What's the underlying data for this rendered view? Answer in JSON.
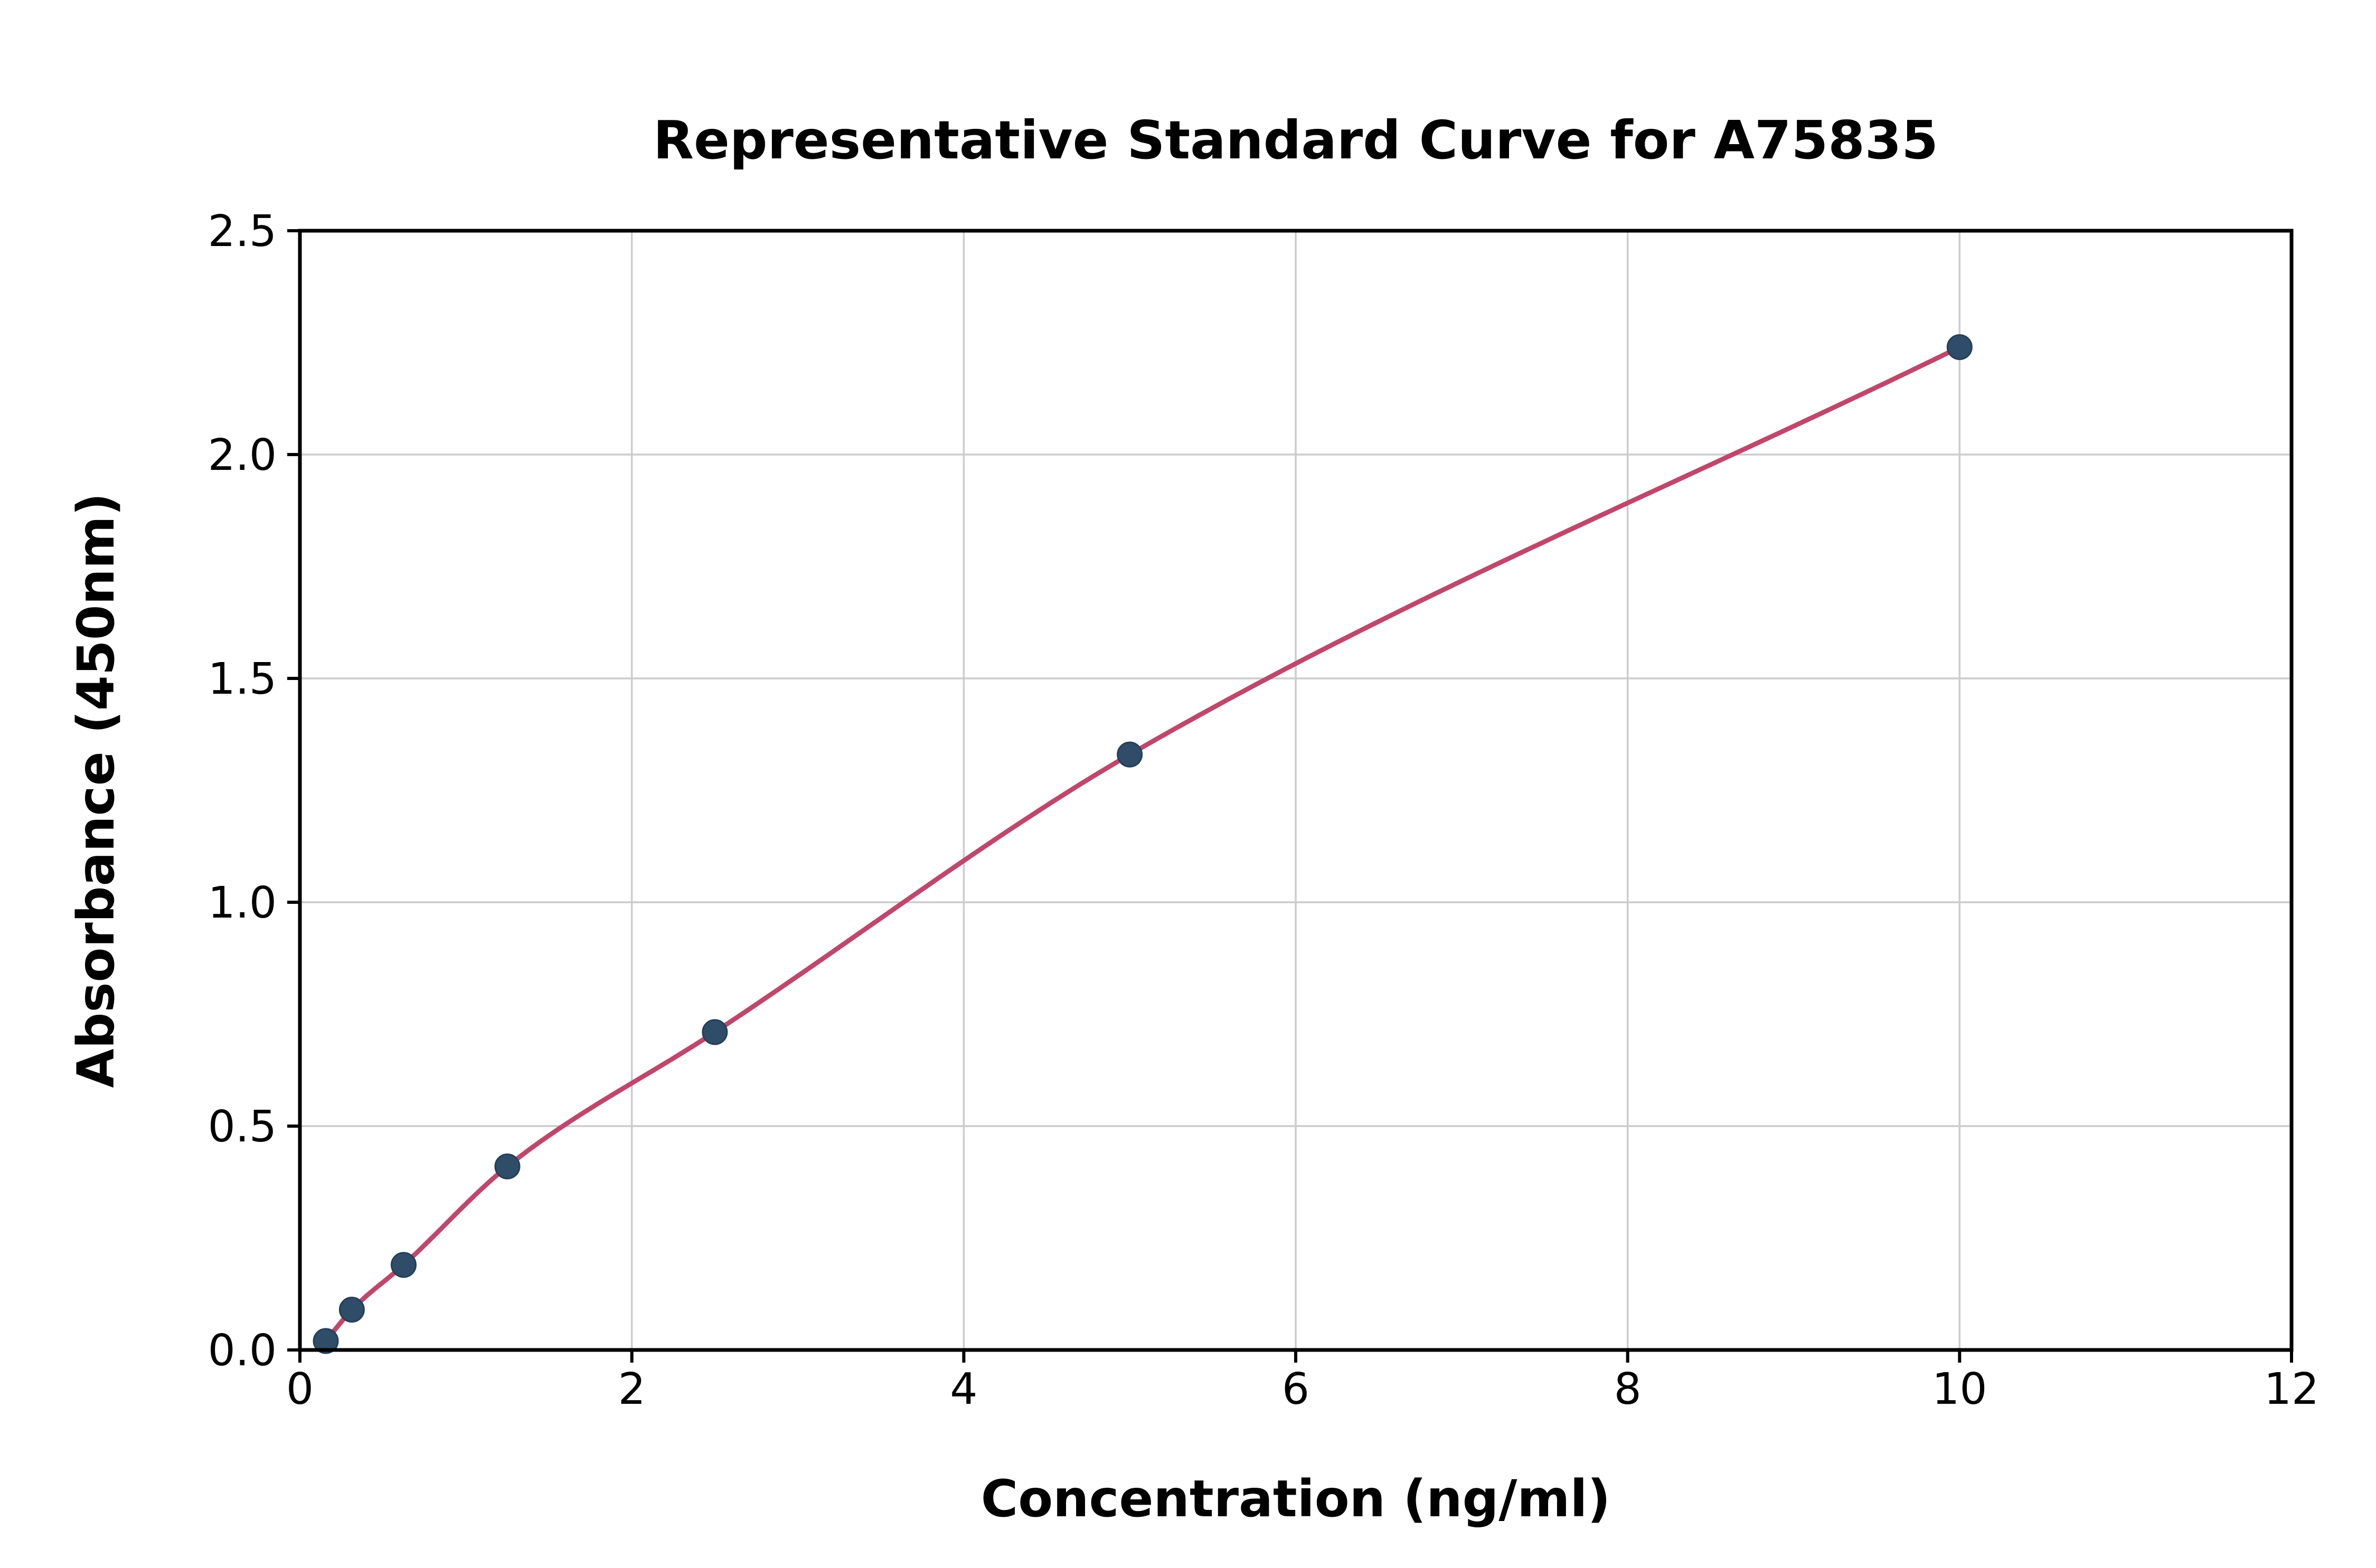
{
  "chart_data": {
    "type": "scatter",
    "title": "Representative Standard Curve for A75835",
    "xlabel": "Concentration (ng/ml)",
    "ylabel": "Absorbance (450nm)",
    "xlim": [
      0,
      12
    ],
    "ylim": [
      0,
      2.5
    ],
    "xticks": [
      0,
      2,
      4,
      6,
      8,
      10,
      12
    ],
    "xtick_labels": [
      "0",
      "2",
      "4",
      "6",
      "8",
      "10",
      "12"
    ],
    "yticks": [
      0,
      0.5,
      1.0,
      1.5,
      2.0,
      2.5
    ],
    "ytick_labels": [
      "0.0",
      "0.5",
      "1.0",
      "1.5",
      "2.0",
      "2.5"
    ],
    "grid": true,
    "legend": "none",
    "colors": {
      "curve": "#c0476b",
      "points": "#2f4d68",
      "point_edge": "#24405a",
      "grid": "#cccccc",
      "axis": "#000000",
      "background": "#ffffff"
    },
    "series": [
      {
        "name": "fit-curve",
        "type": "line",
        "color": "#c0476b",
        "x": [
          0.156,
          0.313,
          0.625,
          1.25,
          2.5,
          5,
          10
        ],
        "y": [
          0.02,
          0.09,
          0.19,
          0.41,
          0.71,
          1.33,
          2.24
        ]
      },
      {
        "name": "standard-points",
        "type": "scatter",
        "color": "#2f4d68",
        "x": [
          0.156,
          0.313,
          0.625,
          1.25,
          2.5,
          5,
          10
        ],
        "y": [
          0.02,
          0.09,
          0.19,
          0.41,
          0.71,
          1.33,
          2.24
        ]
      }
    ]
  }
}
